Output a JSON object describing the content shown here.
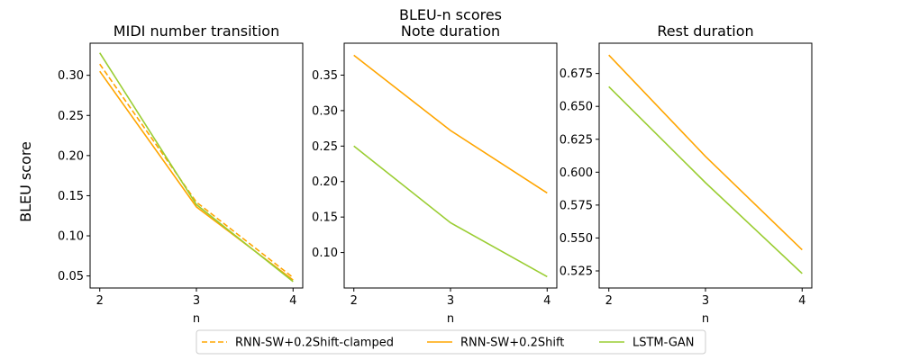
{
  "figure": {
    "suptitle": "BLEU-n scores",
    "ylabel": "BLEU score"
  },
  "legend": {
    "placement": "bottom-center",
    "entries": [
      {
        "name": "RNN-SW+0.2Shift-clamped",
        "color": "#FFA500",
        "dash": true
      },
      {
        "name": "RNN-SW+0.2Shift",
        "color": "#FFA500",
        "dash": false
      },
      {
        "name": "LSTM-GAN",
        "color": "#9ACD32",
        "dash": false
      }
    ]
  },
  "chart_data": [
    {
      "type": "line",
      "title": "MIDI number transition",
      "xlabel": "n",
      "x": [
        2,
        3,
        4
      ],
      "ylim": [
        0.035,
        0.34
      ],
      "yticks": [
        "0.05",
        "0.10",
        "0.15",
        "0.20",
        "0.25",
        "0.30"
      ],
      "series": [
        {
          "name": "RNN-SW+0.2Shift-clamped",
          "values": [
            0.314,
            0.142,
            0.048
          ],
          "color": "#FFA500",
          "dash": true
        },
        {
          "name": "RNN-SW+0.2Shift",
          "values": [
            0.305,
            0.136,
            0.045
          ],
          "color": "#FFA500",
          "dash": false
        },
        {
          "name": "LSTM-GAN",
          "values": [
            0.328,
            0.139,
            0.043
          ],
          "color": "#9ACD32",
          "dash": false
        }
      ]
    },
    {
      "type": "line",
      "title": "Note duration",
      "xlabel": "n",
      "x": [
        2,
        3,
        4
      ],
      "ylim": [
        0.05,
        0.395
      ],
      "yticks": [
        "0.10",
        "0.15",
        "0.20",
        "0.25",
        "0.30",
        "0.35"
      ],
      "series": [
        {
          "name": "RNN-SW+0.2Shift",
          "values": [
            0.378,
            0.272,
            0.184
          ],
          "color": "#FFA500",
          "dash": false
        },
        {
          "name": "LSTM-GAN",
          "values": [
            0.25,
            0.142,
            0.066
          ],
          "color": "#9ACD32",
          "dash": false
        }
      ]
    },
    {
      "type": "line",
      "title": "Rest duration",
      "xlabel": "n",
      "x": [
        2,
        3,
        4
      ],
      "ylim": [
        0.512,
        0.698
      ],
      "yticks": [
        "0.525",
        "0.550",
        "0.575",
        "0.600",
        "0.625",
        "0.650",
        "0.675"
      ],
      "series": [
        {
          "name": "RNN-SW+0.2Shift",
          "values": [
            0.689,
            0.612,
            0.541
          ],
          "color": "#FFA500",
          "dash": false
        },
        {
          "name": "LSTM-GAN",
          "values": [
            0.665,
            0.592,
            0.523
          ],
          "color": "#9ACD32",
          "dash": false
        }
      ]
    }
  ]
}
